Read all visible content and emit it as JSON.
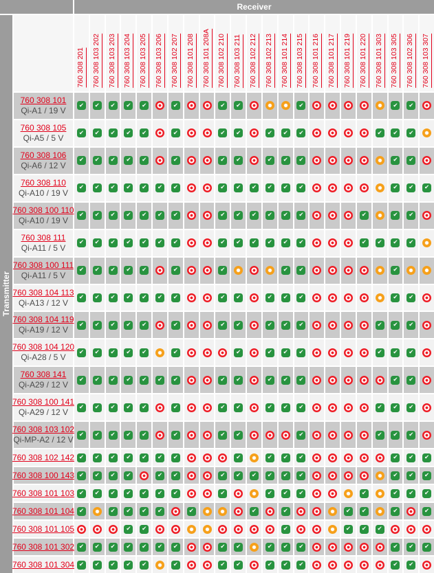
{
  "app": {
    "receiver_label": "Receiver",
    "transmitter_label": "Transmitter"
  },
  "status_colors": {
    "g": "#28933f",
    "r": "#ee1c25",
    "o": "#f6a01a"
  },
  "status_names": {
    "g": "compatible",
    "r": "not-compatible",
    "o": "restricted"
  },
  "columns": [
    "760 308 201",
    "760 308 103 202",
    "760 308 103 203",
    "760 308 103 204",
    "760 308 103 205",
    "760 308 103 206",
    "760 308 102 207",
    "760 308 101 208",
    "760 308 101 208A",
    "760 308 102 210",
    "760 308 103 211",
    "760 308 102 212",
    "760 308 102 213",
    "760 308 101 214",
    "760 308 103 215",
    "760 308 101 216",
    "760 308 101 217",
    "760 308 101 219",
    "760 308 101 220",
    "760 308 101 303",
    "760 308 103 305",
    "760 308 102 306",
    "760 308 103 307"
  ],
  "rows": [
    {
      "code": "760 308 101",
      "model": "Qi-A1 / 19 V",
      "statuses": "gggggrgrrggroogrrrroggr"
    },
    {
      "code": "760 308 105",
      "model": "Qi-A5 / 5 V",
      "statuses": "gggggrgrrggrgggrrrrgggo"
    },
    {
      "code": "760 308 106",
      "model": "Qi-A6 / 12 V",
      "statuses": "gggggrgrrggrgggrrrroggr"
    },
    {
      "code": "760 308 110",
      "model": "Qi-A10 / 19 V",
      "statuses": "gggggggrrggggggrrrroggg"
    },
    {
      "code": "760 308 100 110",
      "model": "Qi-A10 / 19 V",
      "statuses": "gggggggrrggggggrrrgoggr"
    },
    {
      "code": "760 308 111",
      "model": "Qi-A11 / 5 V",
      "statuses": "gggggggrrggggggrrrggggo"
    },
    {
      "code": "760 308 100 111",
      "model": "Qi-A11 / 5 V",
      "statuses": "gggggrgrrgoroggrrrrogoo"
    },
    {
      "code": "760 308 104 113",
      "model": "Qi-A13 / 12 V",
      "statuses": "gggggggrrggrgggrrrroggr"
    },
    {
      "code": "760 308 104 119",
      "model": "Qi-A19 / 12 V",
      "statuses": "gggggrgrrggrgggrrrrgggr"
    },
    {
      "code": "760 308 104 120",
      "model": "Qi-A28 / 5 V",
      "statuses": "gggggogrrrgrgggrrrrgggr"
    },
    {
      "code": "760 308 141",
      "model": "Qi-A29 / 12 V",
      "statuses": "gggggggrrggrgggrrrrrggr"
    },
    {
      "code": "760 308 100 141",
      "model": "Qi-A29 / 12 V",
      "statuses": "gggggrgrrggrgggrrrrgggr"
    },
    {
      "code": "760 308 103 102",
      "model": "Qi-MP-A2 / 12 V",
      "statuses": "gggggrgrrggrrrgrrrrgggr"
    },
    {
      "code": "760 308 102 142",
      "model": "",
      "statuses": "gggggggrrrgogggrrrrrggg"
    },
    {
      "code": "760 308 100 143",
      "model": "",
      "statuses": "ggggrggrrggggggrrrroggg"
    },
    {
      "code": "760 308 101 103",
      "model": "",
      "statuses": "gggggggrrgrogggrrogoggg"
    },
    {
      "code": "760 308 101 104",
      "model": "",
      "statuses": "goggggrgoorgrgrroggogrg"
    },
    {
      "code": "760 308 101 105",
      "model": "",
      "statuses": "rrrggrroorrrrgrrogggrrr"
    },
    {
      "code": "760 308 101 302",
      "model": "",
      "statuses": "gggggggrrggogggrrrrrggg"
    },
    {
      "code": "760 308 101 304",
      "model": "",
      "statuses": "gggggogrrggrgggrrrrrggr"
    }
  ]
}
